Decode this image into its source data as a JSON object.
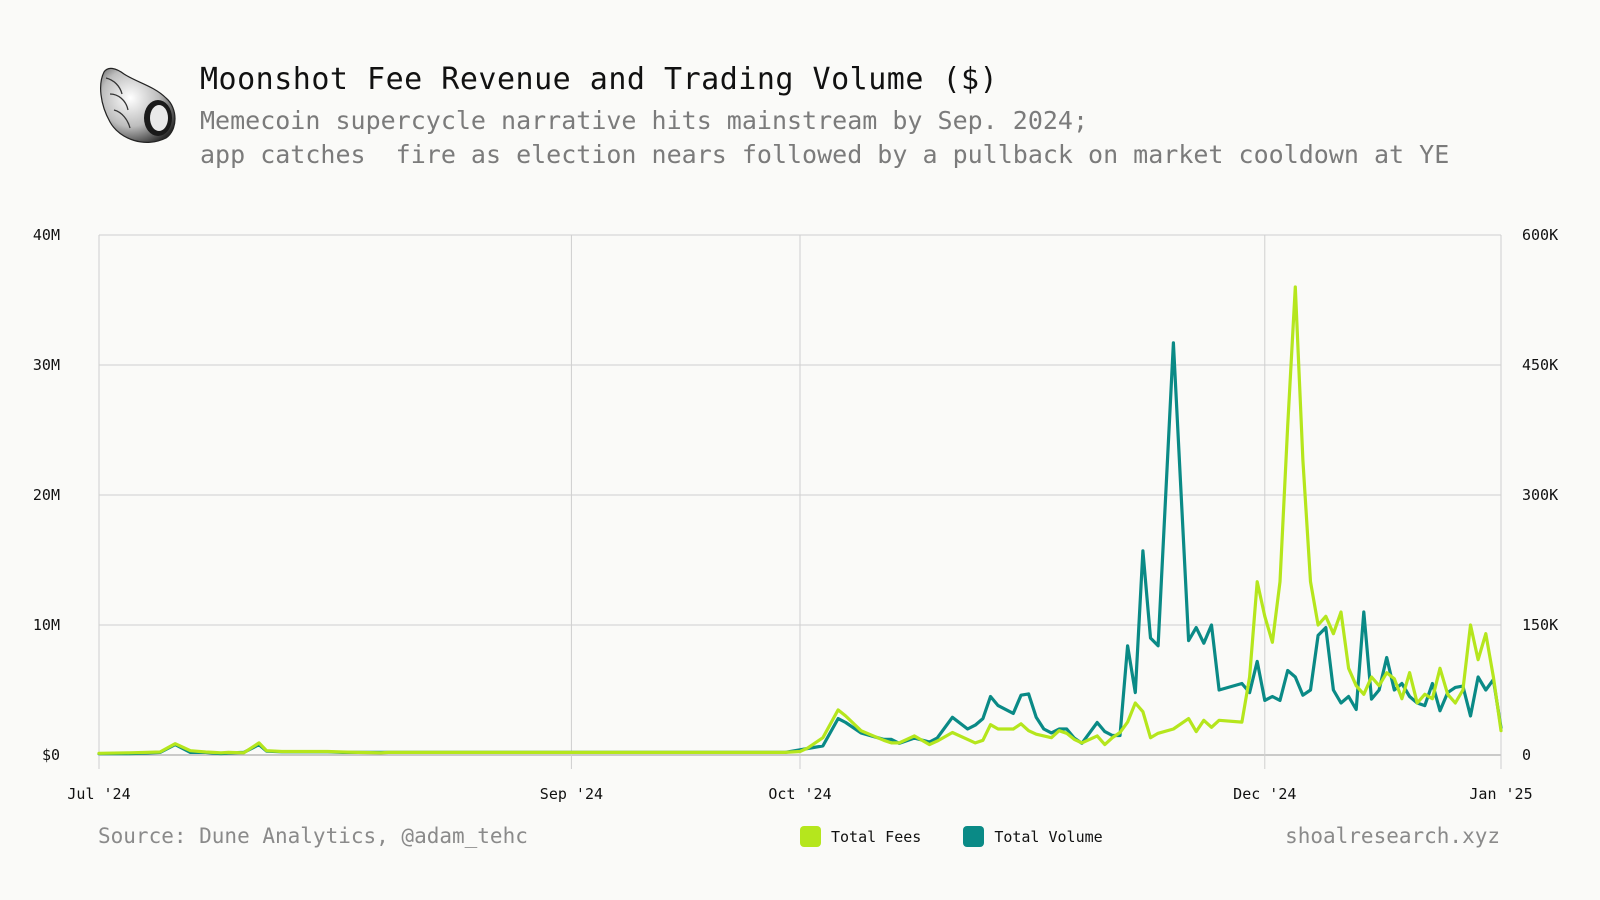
{
  "header": {
    "title": "Moonshot Fee Revenue and Trading Volume ($)",
    "subtitle_line1": "Memecoin supercycle narrative hits mainstream by Sep. 2024;",
    "subtitle_line2": "app catches  fire as election nears followed by a pullback on market cooldown at YE",
    "logo_icon": "seashell-icon"
  },
  "footer": {
    "source": "Source: Dune Analytics, @adam_tehc",
    "site": "shoalresearch.xyz"
  },
  "chart_data": {
    "type": "line",
    "x_ticks": [
      "Jul '24",
      "Sep '24",
      "Oct '24",
      "Dec '24",
      "Jan '25"
    ],
    "x_tick_days": [
      0,
      62,
      92,
      153,
      184
    ],
    "y_left": {
      "ticks": [
        "$0",
        "10M",
        "20M",
        "30M",
        "40M"
      ],
      "range": [
        0,
        40000000
      ]
    },
    "y_right": {
      "ticks": [
        "0",
        "150K",
        "300K",
        "450K",
        "600K"
      ],
      "range": [
        0,
        600000
      ]
    },
    "grid": true,
    "legend_position": "bottom-center",
    "series": [
      {
        "name": "Total Fees",
        "color": "#b5e61d",
        "axis": "right",
        "x": [
          0,
          4,
          8,
          10,
          12,
          14,
          15,
          16,
          17,
          19,
          21,
          22,
          24,
          25,
          27,
          29,
          30,
          32,
          34,
          37,
          38,
          40,
          42,
          45,
          50,
          55,
          60,
          65,
          70,
          75,
          80,
          85,
          90,
          92,
          93,
          95,
          97,
          98,
          100,
          103,
          104,
          105,
          107,
          109,
          110,
          112,
          114,
          115,
          116,
          117,
          118,
          120,
          121,
          122,
          123,
          124,
          125,
          126,
          127,
          128,
          129,
          131,
          132,
          133,
          134,
          135,
          136,
          137,
          138,
          139,
          141,
          143,
          144,
          145,
          146,
          147,
          150,
          151,
          152,
          153,
          154,
          155,
          156,
          157,
          158,
          159,
          160,
          161,
          162,
          163,
          164,
          165,
          166,
          167,
          168,
          169,
          170,
          171,
          172,
          173,
          174,
          175,
          176,
          177,
          178,
          179,
          180,
          181,
          182,
          183,
          184
        ],
        "y": [
          2000,
          2500,
          3500,
          13000,
          5000,
          3500,
          3000,
          2500,
          3000,
          2500,
          14000,
          5000,
          4000,
          4000,
          4000,
          4000,
          4000,
          3500,
          3000,
          2500,
          3000,
          3000,
          3000,
          3000,
          3000,
          3000,
          3000,
          3000,
          3000,
          3000,
          3000,
          3000,
          3000,
          4000,
          8000,
          20000,
          52000,
          45000,
          28000,
          17000,
          14000,
          14000,
          22000,
          12000,
          16000,
          26000,
          18000,
          14000,
          17000,
          35000,
          30000,
          30000,
          36000,
          28000,
          24000,
          22000,
          20000,
          28000,
          25000,
          18000,
          14000,
          22000,
          12000,
          20000,
          26000,
          38000,
          60000,
          50000,
          20000,
          25000,
          30000,
          42000,
          27000,
          40000,
          32000,
          40000,
          38000,
          90000,
          200000,
          160000,
          130000,
          200000,
          380000,
          540000,
          340000,
          200000,
          150000,
          160000,
          140000,
          165000,
          100000,
          80000,
          70000,
          90000,
          80000,
          95000,
          88000,
          65000,
          95000,
          60000,
          70000,
          65000,
          100000,
          70000,
          60000,
          75000,
          150000,
          110000,
          140000,
          90000,
          28000
        ]
      },
      {
        "name": "Total Volume",
        "color": "#0a8a86",
        "axis": "left",
        "x": [
          0,
          4,
          8,
          10,
          12,
          14,
          15,
          16,
          17,
          19,
          21,
          22,
          24,
          25,
          27,
          29,
          30,
          32,
          34,
          37,
          38,
          40,
          42,
          45,
          50,
          55,
          60,
          65,
          70,
          75,
          80,
          85,
          90,
          92,
          93,
          95,
          97,
          98,
          100,
          103,
          104,
          105,
          107,
          109,
          110,
          112,
          114,
          115,
          116,
          117,
          118,
          120,
          121,
          122,
          123,
          124,
          125,
          126,
          127,
          128,
          129,
          131,
          132,
          133,
          134,
          135,
          136,
          137,
          138,
          139,
          141,
          143,
          144,
          145,
          146,
          147,
          150,
          151,
          152,
          153,
          154,
          155,
          156,
          157,
          158,
          159,
          160,
          161,
          162,
          163,
          164,
          165,
          166,
          167,
          168,
          169,
          170,
          171,
          172,
          173,
          174,
          175,
          176,
          177,
          178,
          179,
          180,
          181,
          182,
          183,
          184
        ],
        "y": [
          100000,
          100000,
          200000,
          800000,
          200000,
          200000,
          150000,
          100000,
          150000,
          200000,
          800000,
          300000,
          250000,
          250000,
          250000,
          250000,
          250000,
          200000,
          200000,
          200000,
          200000,
          200000,
          200000,
          200000,
          200000,
          200000,
          200000,
          200000,
          200000,
          200000,
          200000,
          200000,
          200000,
          400000,
          500000,
          700000,
          2800000,
          2500000,
          1700000,
          1200000,
          1200000,
          900000,
          1300000,
          1000000,
          1300000,
          2900000,
          2000000,
          2300000,
          2800000,
          4500000,
          3800000,
          3200000,
          4600000,
          4700000,
          2900000,
          2000000,
          1700000,
          2000000,
          2000000,
          1300000,
          900000,
          2500000,
          1800000,
          1500000,
          1500000,
          8400000,
          4800000,
          15700000,
          9000000,
          8400000,
          31700000,
          8800000,
          9800000,
          8600000,
          10000000,
          5000000,
          5500000,
          4800000,
          7200000,
          4200000,
          4500000,
          4200000,
          6500000,
          6000000,
          4600000,
          5000000,
          9200000,
          9800000,
          5000000,
          4000000,
          4500000,
          3500000,
          11000000,
          4300000,
          5000000,
          7500000,
          5000000,
          5500000,
          4500000,
          4000000,
          3800000,
          5500000,
          3400000,
          4800000,
          5200000,
          5300000,
          3000000,
          6000000,
          5000000,
          5800000,
          2100000
        ]
      }
    ]
  }
}
